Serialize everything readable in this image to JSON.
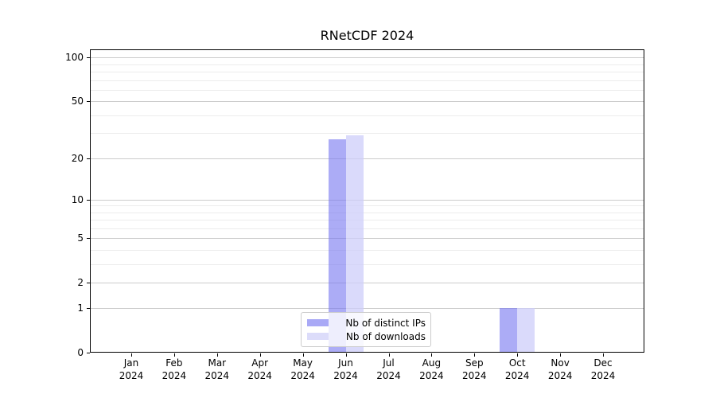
{
  "title": "RNetCDF 2024",
  "colors": {
    "background": "#ffffff",
    "axis_line": "#000000",
    "grid_major": "#cccccc",
    "grid_minor": "#ececec",
    "bar_distinct_ips": "#a9a9f6",
    "bar_downloads": "#dcdcfa",
    "legend_border": "#cccccc"
  },
  "legend": {
    "items": [
      "Nb of distinct IPs",
      "Nb of downloads"
    ]
  },
  "chart_data": {
    "type": "bar",
    "title": "RNetCDF 2024",
    "categories": [
      "Jan",
      "Feb",
      "Mar",
      "Apr",
      "May",
      "Jun",
      "Jul",
      "Aug",
      "Sep",
      "Oct",
      "Nov",
      "Dec"
    ],
    "year_label": "2024",
    "series": [
      {
        "name": "Nb of distinct IPs",
        "values": [
          0,
          0,
          0,
          0,
          0,
          27,
          0,
          0,
          0,
          1,
          0,
          0
        ],
        "color": "#a9a9f6",
        "fill": "rgba(116,116,240,0.60)"
      },
      {
        "name": "Nb of downloads",
        "values": [
          0,
          0,
          0,
          0,
          0,
          29,
          0,
          0,
          0,
          1,
          0,
          0
        ],
        "color": "#dcdcfa",
        "fill": "rgba(205,205,249,0.75)"
      }
    ],
    "xlabel": "",
    "ylabel": "",
    "yscale": "log1p",
    "ylim": [
      0,
      114
    ],
    "yticks": [
      0,
      1,
      2,
      5,
      10,
      20,
      50,
      100
    ],
    "yticks_minor": [
      3,
      4,
      6,
      7,
      8,
      9,
      30,
      40,
      60,
      70,
      80,
      90
    ],
    "grid": "horizontal",
    "legend_position": "bottom-center"
  }
}
